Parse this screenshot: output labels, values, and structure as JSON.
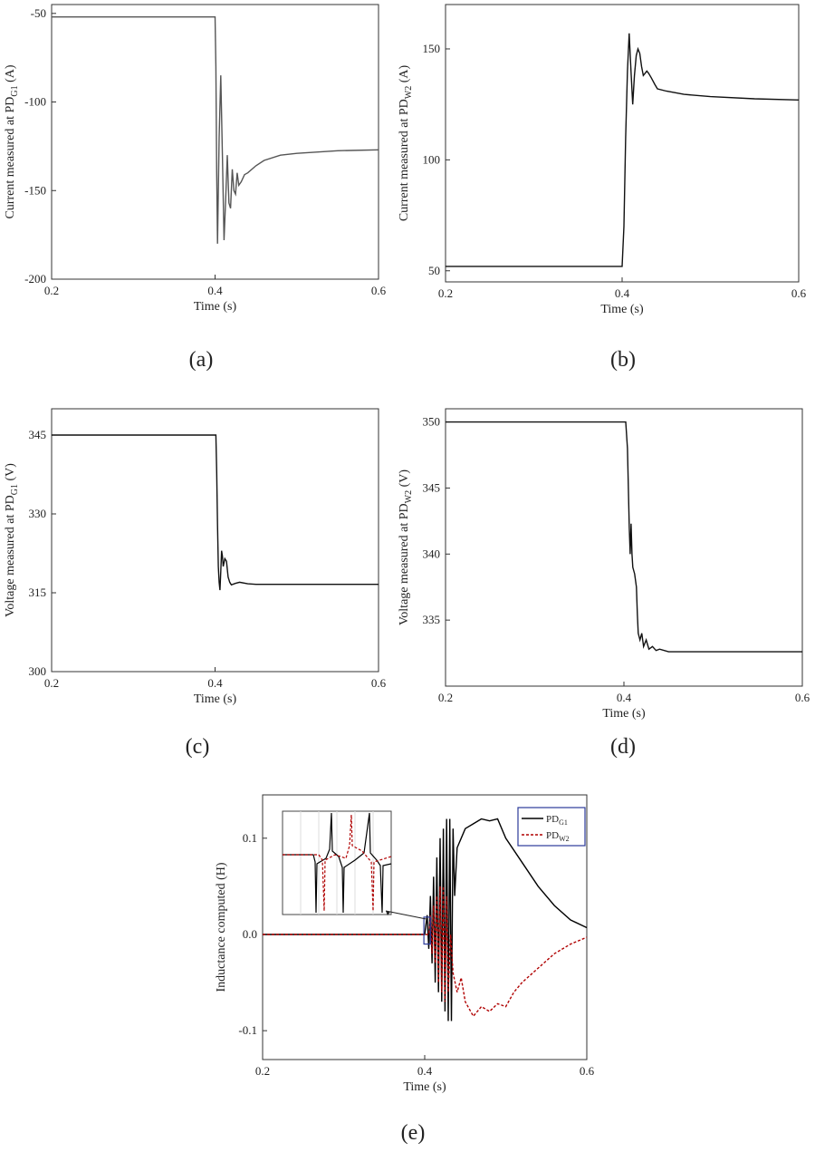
{
  "chart_data": [
    {
      "id": "a",
      "type": "line",
      "caption": "(a)",
      "xlabel": "Time (s)",
      "ylabel": {
        "prefix": "Current measured at PD",
        "sub": "G1",
        "suffix": " (A)"
      },
      "xlim": [
        0.2,
        0.6
      ],
      "ylim": [
        -200,
        -45
      ],
      "xticks": [
        0.2,
        0.4,
        0.6
      ],
      "yticks": [
        -200,
        -150,
        -100,
        -50
      ],
      "series": [
        {
          "color": "#555555",
          "dash": "",
          "points": [
            [
              0.2,
              -52
            ],
            [
              0.4,
              -52
            ],
            [
              0.401,
              -80
            ],
            [
              0.402,
              -140
            ],
            [
              0.403,
              -180
            ],
            [
              0.405,
              -120
            ],
            [
              0.407,
              -85
            ],
            [
              0.409,
              -130
            ],
            [
              0.411,
              -178
            ],
            [
              0.413,
              -155
            ],
            [
              0.415,
              -130
            ],
            [
              0.417,
              -157
            ],
            [
              0.419,
              -160
            ],
            [
              0.421,
              -138
            ],
            [
              0.423,
              -150
            ],
            [
              0.425,
              -152
            ],
            [
              0.427,
              -140
            ],
            [
              0.429,
              -147
            ],
            [
              0.432,
              -145
            ],
            [
              0.436,
              -141
            ],
            [
              0.44,
              -140
            ],
            [
              0.45,
              -136
            ],
            [
              0.46,
              -133
            ],
            [
              0.48,
              -130
            ],
            [
              0.5,
              -129
            ],
            [
              0.55,
              -127.5
            ],
            [
              0.6,
              -127
            ]
          ]
        }
      ]
    },
    {
      "id": "b",
      "type": "line",
      "caption": "(b)",
      "xlabel": "Time (s)",
      "ylabel": {
        "prefix": "Current measured at PD",
        "sub": "W2",
        "suffix": " (A)"
      },
      "xlim": [
        0.2,
        0.6
      ],
      "ylim": [
        45,
        170
      ],
      "xticks": [
        0.2,
        0.4,
        0.6
      ],
      "yticks": [
        50,
        100,
        150
      ],
      "series": [
        {
          "color": "#111111",
          "dash": "",
          "points": [
            [
              0.2,
              52
            ],
            [
              0.4,
              52
            ],
            [
              0.402,
              70
            ],
            [
              0.404,
              110
            ],
            [
              0.406,
              140
            ],
            [
              0.408,
              157
            ],
            [
              0.41,
              140
            ],
            [
              0.412,
              125
            ],
            [
              0.414,
              138
            ],
            [
              0.416,
              147
            ],
            [
              0.418,
              150
            ],
            [
              0.42,
              148
            ],
            [
              0.422,
              142
            ],
            [
              0.424,
              138
            ],
            [
              0.426,
              139
            ],
            [
              0.428,
              140
            ],
            [
              0.43,
              139
            ],
            [
              0.433,
              137
            ],
            [
              0.437,
              134
            ],
            [
              0.44,
              132
            ],
            [
              0.45,
              131
            ],
            [
              0.47,
              129.5
            ],
            [
              0.5,
              128.5
            ],
            [
              0.55,
              127.5
            ],
            [
              0.6,
              127
            ]
          ]
        }
      ]
    },
    {
      "id": "c",
      "type": "line",
      "caption": "(c)",
      "xlabel": "Time (s)",
      "ylabel": {
        "prefix": "Voltage measured at PD",
        "sub": "G1",
        "suffix": " (V)"
      },
      "xlim": [
        0.2,
        0.6
      ],
      "ylim": [
        300,
        350
      ],
      "xticks": [
        0.2,
        0.4,
        0.6
      ],
      "yticks": [
        300,
        315,
        330,
        345
      ],
      "series": [
        {
          "color": "#111111",
          "dash": "",
          "points": [
            [
              0.2,
              345
            ],
            [
              0.401,
              345
            ],
            [
              0.402,
              338
            ],
            [
              0.403,
              328
            ],
            [
              0.404,
              320
            ],
            [
              0.405,
              317
            ],
            [
              0.406,
              315.5
            ],
            [
              0.407,
              319
            ],
            [
              0.408,
              323
            ],
            [
              0.409,
              322
            ],
            [
              0.41,
              320
            ],
            [
              0.412,
              321.5
            ],
            [
              0.414,
              321
            ],
            [
              0.416,
              318
            ],
            [
              0.418,
              317
            ],
            [
              0.42,
              316.5
            ],
            [
              0.425,
              316.8
            ],
            [
              0.43,
              317
            ],
            [
              0.44,
              316.7
            ],
            [
              0.45,
              316.6
            ],
            [
              0.6,
              316.6
            ]
          ]
        }
      ]
    },
    {
      "id": "d",
      "type": "line",
      "caption": "(d)",
      "xlabel": "Time (s)",
      "ylabel": {
        "prefix": "Voltage measured at PD",
        "sub": "W2",
        "suffix": " (V)"
      },
      "xlim": [
        0.2,
        0.6
      ],
      "ylim": [
        330,
        351
      ],
      "xticks": [
        0.2,
        0.4,
        0.6
      ],
      "yticks": [
        335,
        340,
        345,
        350
      ],
      "series": [
        {
          "color": "#111111",
          "dash": "",
          "points": [
            [
              0.2,
              350
            ],
            [
              0.402,
              350
            ],
            [
              0.404,
              348
            ],
            [
              0.405,
              345
            ],
            [
              0.406,
              342
            ],
            [
              0.407,
              340
            ],
            [
              0.408,
              342.3
            ],
            [
              0.409,
              340
            ],
            [
              0.41,
              339
            ],
            [
              0.412,
              338.5
            ],
            [
              0.414,
              337.5
            ],
            [
              0.415,
              335.5
            ],
            [
              0.416,
              334
            ],
            [
              0.418,
              333.5
            ],
            [
              0.42,
              334
            ],
            [
              0.422,
              333
            ],
            [
              0.425,
              333.5
            ],
            [
              0.428,
              332.8
            ],
            [
              0.432,
              333
            ],
            [
              0.436,
              332.7
            ],
            [
              0.44,
              332.8
            ],
            [
              0.45,
              332.6
            ],
            [
              0.6,
              332.6
            ]
          ]
        }
      ]
    },
    {
      "id": "e",
      "type": "line",
      "caption": "(e)",
      "xlabel": "Time (s)",
      "ylabel": {
        "prefix": "Inductance computed (H)",
        "sub": "",
        "suffix": ""
      },
      "xlim": [
        0.2,
        0.6
      ],
      "ylim": [
        -0.13,
        0.145
      ],
      "xticks": [
        0.2,
        0.4,
        0.6
      ],
      "yticks": [
        -0.1,
        0.0,
        0.1
      ],
      "legend": {
        "position": "top-right",
        "items": [
          {
            "prefix": "PD",
            "sub": "G1",
            "color": "#000000",
            "dash": ""
          },
          {
            "prefix": "PD",
            "sub": "W2",
            "color": "#b00000",
            "dash": "3,2"
          }
        ]
      },
      "inset": {
        "zoom_box_x": [
          0.399,
          0.407
        ],
        "zoom_box_y": [
          -0.01,
          0.018
        ]
      },
      "series": [
        {
          "color": "#000000",
          "dash": "",
          "points": [
            [
              0.2,
              0
            ],
            [
              0.4,
              0
            ],
            [
              0.403,
              0.02
            ],
            [
              0.405,
              -0.015
            ],
            [
              0.407,
              0.04
            ],
            [
              0.409,
              -0.03
            ],
            [
              0.411,
              0.06
            ],
            [
              0.413,
              -0.05
            ],
            [
              0.415,
              0.08
            ],
            [
              0.417,
              -0.06
            ],
            [
              0.419,
              0.1
            ],
            [
              0.421,
              -0.07
            ],
            [
              0.423,
              0.11
            ],
            [
              0.425,
              -0.08
            ],
            [
              0.427,
              0.12
            ],
            [
              0.429,
              -0.09
            ],
            [
              0.431,
              0.12
            ],
            [
              0.433,
              -0.09
            ],
            [
              0.435,
              0.11
            ],
            [
              0.437,
              0.04
            ],
            [
              0.44,
              0.09
            ],
            [
              0.445,
              0.1
            ],
            [
              0.45,
              0.11
            ],
            [
              0.46,
              0.115
            ],
            [
              0.47,
              0.12
            ],
            [
              0.48,
              0.118
            ],
            [
              0.49,
              0.12
            ],
            [
              0.5,
              0.1
            ],
            [
              0.52,
              0.075
            ],
            [
              0.54,
              0.05
            ],
            [
              0.56,
              0.03
            ],
            [
              0.58,
              0.015
            ],
            [
              0.6,
              0.007
            ]
          ]
        },
        {
          "color": "#b00000",
          "dash": "3,2",
          "points": [
            [
              0.2,
              0
            ],
            [
              0.405,
              0
            ],
            [
              0.407,
              0.02
            ],
            [
              0.409,
              -0.02
            ],
            [
              0.411,
              0.03
            ],
            [
              0.413,
              -0.03
            ],
            [
              0.415,
              0.04
            ],
            [
              0.417,
              -0.05
            ],
            [
              0.419,
              0.05
            ],
            [
              0.421,
              -0.06
            ],
            [
              0.423,
              0.05
            ],
            [
              0.425,
              -0.07
            ],
            [
              0.427,
              0.04
            ],
            [
              0.429,
              -0.06
            ],
            [
              0.432,
              0.0
            ],
            [
              0.435,
              -0.04
            ],
            [
              0.44,
              -0.06
            ],
            [
              0.445,
              -0.045
            ],
            [
              0.45,
              -0.07
            ],
            [
              0.46,
              -0.085
            ],
            [
              0.47,
              -0.075
            ],
            [
              0.48,
              -0.08
            ],
            [
              0.49,
              -0.072
            ],
            [
              0.5,
              -0.075
            ],
            [
              0.51,
              -0.06
            ],
            [
              0.52,
              -0.05
            ],
            [
              0.54,
              -0.035
            ],
            [
              0.56,
              -0.02
            ],
            [
              0.58,
              -0.01
            ],
            [
              0.6,
              -0.003
            ]
          ]
        }
      ]
    }
  ]
}
